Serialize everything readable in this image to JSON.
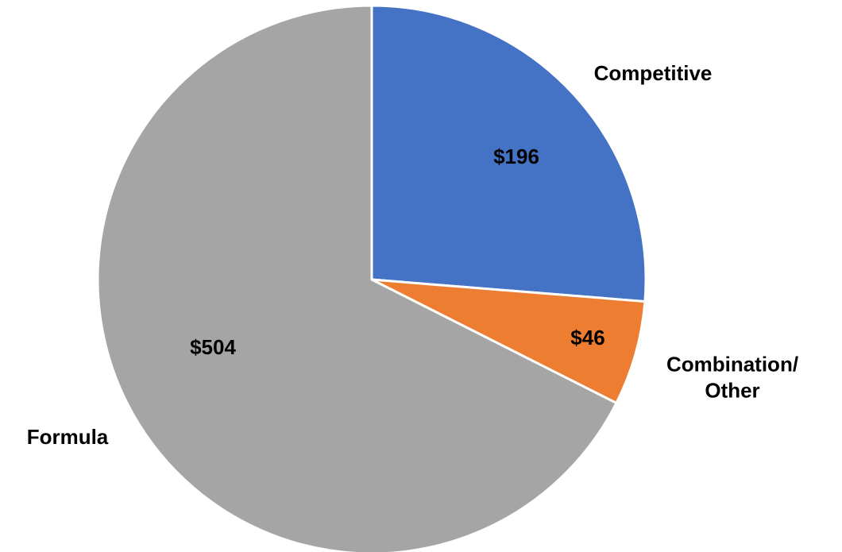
{
  "chart_data": {
    "type": "pie",
    "categories": [
      "Competitive",
      "Combination/ Other",
      "Formula"
    ],
    "values": [
      196,
      46,
      504
    ],
    "value_labels": [
      "$196",
      "$46",
      "$504"
    ],
    "colors": [
      "#4472c4",
      "#ed7d31",
      "#a5a5a5"
    ]
  }
}
